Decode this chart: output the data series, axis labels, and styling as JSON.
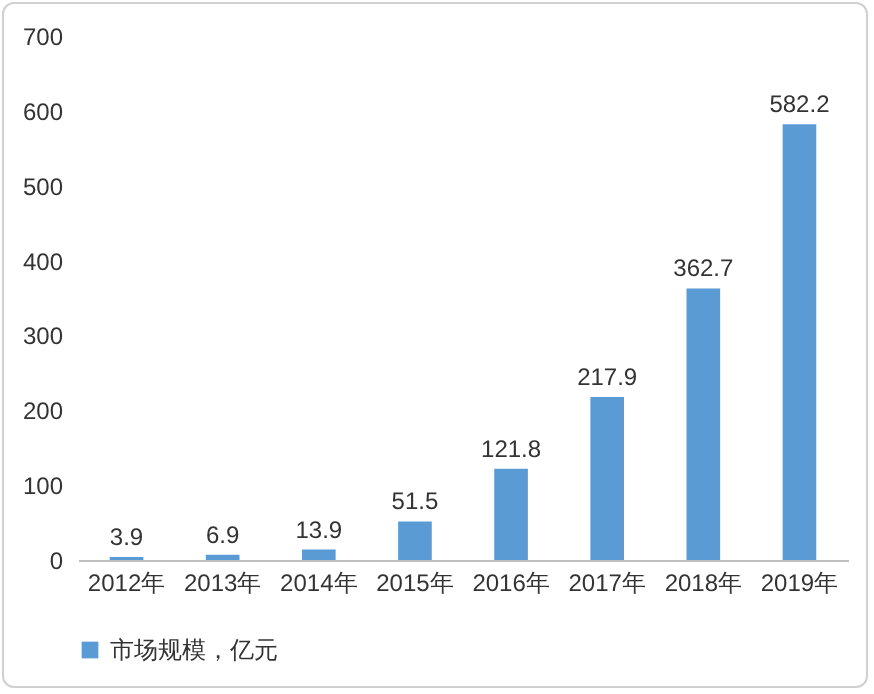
{
  "chart_data": {
    "type": "bar",
    "categories": [
      "2012年",
      "2013年",
      "2014年",
      "2015年",
      "2016年",
      "2017年",
      "2018年",
      "2019年"
    ],
    "series": [
      {
        "name": "市场规模，亿元",
        "color": "#5b9bd5",
        "values": [
          3.9,
          6.9,
          13.9,
          51.5,
          121.8,
          217.9,
          362.7,
          582.2
        ]
      }
    ],
    "ylim": [
      0,
      700
    ],
    "yticks": [
      0,
      100,
      200,
      300,
      400,
      500,
      600,
      700
    ],
    "grid": false,
    "legend": "bottom",
    "data_labels": true
  }
}
